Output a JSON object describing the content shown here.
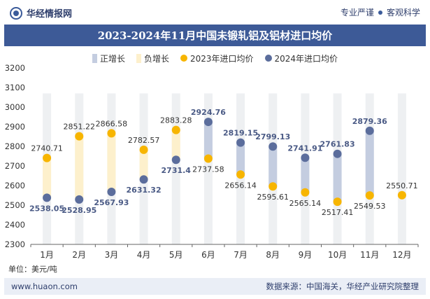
{
  "header": {
    "brand": "华经情报网",
    "tag_left": "专业严谨",
    "tag_right": "客观科学"
  },
  "title": "2023-2024年11月中国未锻轧铝及铝材进口均价",
  "legend": {
    "pos": "正增长",
    "neg": "负增长",
    "s2023": "2023年进口均价",
    "s2024": "2024年进口均价"
  },
  "unit_label": "单位：美元/吨",
  "footer": {
    "site": "www.huaon.com",
    "source": "数据来源：中国海关，华经产业研究院整理"
  },
  "colors": {
    "pos": "#c4cde0",
    "neg": "#fdf0cc",
    "s2023": "#f7b500",
    "s2024": "#5b6d9c",
    "label2024": "#4a5a85",
    "label2023": "#333333",
    "bg_column": "#eef0f2"
  },
  "chart_data": {
    "type": "line",
    "categories": [
      "1月",
      "2月",
      "3月",
      "4月",
      "5月",
      "6月",
      "7月",
      "8月",
      "9月",
      "10月",
      "11月",
      "12月"
    ],
    "series": [
      {
        "name": "2023年进口均价",
        "values": [
          2740.71,
          2851.22,
          2866.58,
          2782.57,
          2883.28,
          2737.58,
          2656.14,
          2595.61,
          2565.14,
          2517.41,
          2549.53,
          2550.71
        ]
      },
      {
        "name": "2024年进口均价",
        "values": [
          2538.05,
          2528.95,
          2567.93,
          2631.32,
          2731.4,
          2924.76,
          2819.15,
          2799.13,
          2741.91,
          2761.83,
          2879.36,
          null
        ]
      }
    ],
    "labels2023": [
      "2740.71",
      "2851.22",
      "2866.58",
      "2782.57",
      "2883.28",
      "2737.58",
      "2656.14",
      "2595.61",
      "2565.14",
      "2517.41",
      "2549.53",
      "2550.71"
    ],
    "labels2024": [
      "2538.05",
      "2528.95",
      "2567.93",
      "2631.32",
      "2731.4",
      "2924.76",
      "2819.15",
      "2799.13",
      "2741.91",
      "2761.83",
      "2879.36",
      ""
    ],
    "yticks": [
      2300,
      2400,
      2500,
      2600,
      2700,
      2800,
      2900,
      3000,
      3100,
      3200
    ],
    "ylim": [
      2300,
      3200
    ],
    "ylabel": "美元/吨",
    "grid": false
  }
}
